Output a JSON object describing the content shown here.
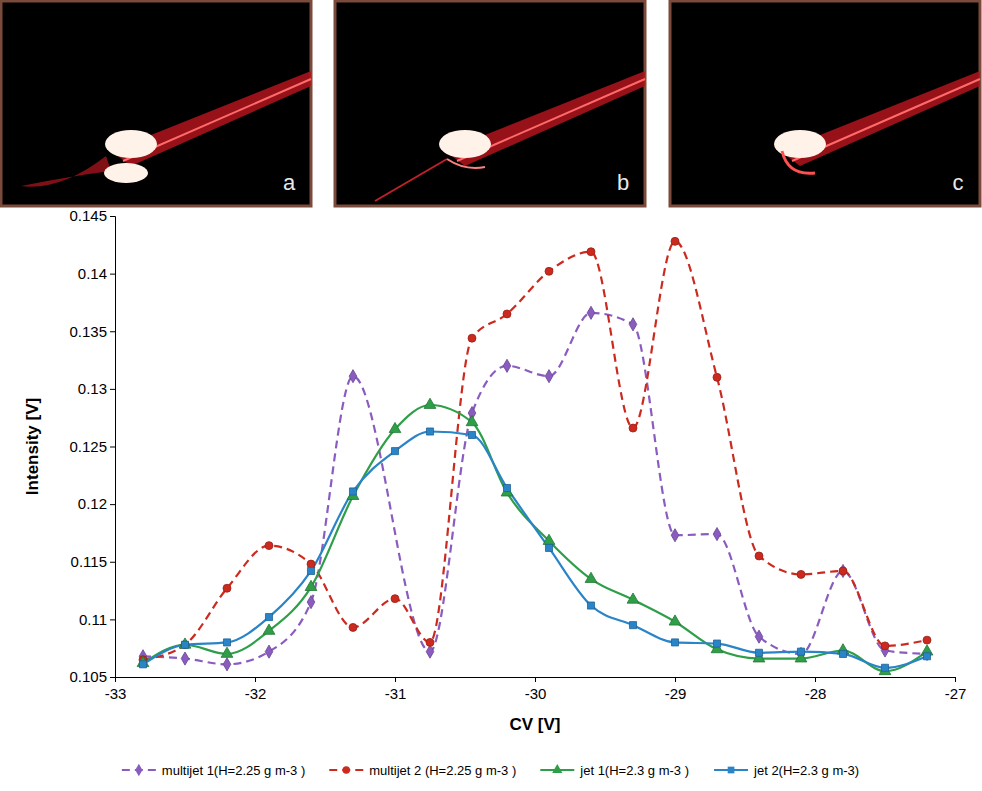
{
  "photos": {
    "labels": [
      "a",
      "b",
      "c"
    ]
  },
  "chart_data": {
    "type": "line",
    "x_label": "CV [V]",
    "y_label": "Intensity [V]",
    "xlim": [
      -33,
      -27
    ],
    "xticks": [
      -33,
      -32,
      -31,
      -30,
      -29,
      -28,
      -27
    ],
    "ylim": [
      0.105,
      0.145
    ],
    "yticks": [
      0.105,
      0.11,
      0.115,
      0.12,
      0.125,
      0.13,
      0.135,
      0.14,
      0.145
    ],
    "grid": false,
    "legend": "bottom",
    "series": [
      {
        "name": "multijet 1(H=2.25 g m-3 )",
        "color": "#8a5cc0",
        "marker": "diamond",
        "line_style": "dashed",
        "x": [
          -32.8,
          -32.5,
          -32.2,
          -31.9,
          -31.6,
          -31.3,
          -30.75,
          -30.45,
          -30.2,
          -29.9,
          -29.6,
          -29.3,
          -29.0,
          -28.7,
          -28.4,
          -28.1,
          -27.8,
          -27.5,
          -27.2
        ],
        "values": [
          0.1068,
          0.1066,
          0.1061,
          0.1072,
          0.1115,
          0.1311,
          0.1072,
          0.1279,
          0.132,
          0.1311,
          0.1366,
          0.1356,
          0.1173,
          0.1174,
          0.1085,
          0.107,
          0.1142,
          0.1073,
          0.107
        ]
      },
      {
        "name": "multijet 2 (H=2.25 g m-3 )",
        "color": "#cc2a1e",
        "marker": "circle",
        "line_style": "dashed",
        "x": [
          -32.8,
          -32.5,
          -32.2,
          -31.9,
          -31.6,
          -31.3,
          -31.0,
          -30.75,
          -30.45,
          -30.2,
          -29.9,
          -29.6,
          -29.3,
          -29.0,
          -28.7,
          -28.4,
          -28.1,
          -27.8,
          -27.5,
          -27.2
        ],
        "values": [
          0.1065,
          0.1078,
          0.1127,
          0.1164,
          0.1148,
          0.1093,
          0.1118,
          0.108,
          0.1344,
          0.1365,
          0.1402,
          0.1419,
          0.1266,
          0.1428,
          0.131,
          0.1155,
          0.1139,
          0.1142,
          0.1077,
          0.1082
        ]
      },
      {
        "name": "jet 1(H=2.3 g m-3 )",
        "color": "#2e9e48",
        "marker": "triangle",
        "line_style": "solid",
        "x": [
          -32.8,
          -32.5,
          -32.2,
          -31.9,
          -31.6,
          -31.3,
          -31.0,
          -30.75,
          -30.45,
          -30.2,
          -29.9,
          -29.6,
          -29.3,
          -29.0,
          -28.7,
          -28.4,
          -28.1,
          -27.8,
          -27.5,
          -27.2
        ],
        "values": [
          0.1062,
          0.1078,
          0.107,
          0.109,
          0.1128,
          0.1207,
          0.1265,
          0.1286,
          0.1271,
          0.121,
          0.1168,
          0.1135,
          0.1117,
          0.1098,
          0.1074,
          0.1066,
          0.1066,
          0.1073,
          0.1055,
          0.1072
        ]
      },
      {
        "name": "jet 2(H=2.3 g m-3)",
        "color": "#2a84c8",
        "marker": "square",
        "line_style": "solid",
        "x": [
          -32.8,
          -32.5,
          -32.2,
          -31.9,
          -31.6,
          -31.3,
          -31.0,
          -30.75,
          -30.45,
          -30.2,
          -29.9,
          -29.6,
          -29.3,
          -29.0,
          -28.7,
          -28.4,
          -28.1,
          -27.8,
          -27.5,
          -27.2
        ],
        "values": [
          0.1061,
          0.1078,
          0.108,
          0.1102,
          0.1142,
          0.1211,
          0.1246,
          0.1263,
          0.126,
          0.1214,
          0.1162,
          0.1112,
          0.1095,
          0.108,
          0.1079,
          0.1071,
          0.1072,
          0.107,
          0.1058,
          0.1068
        ]
      }
    ]
  }
}
